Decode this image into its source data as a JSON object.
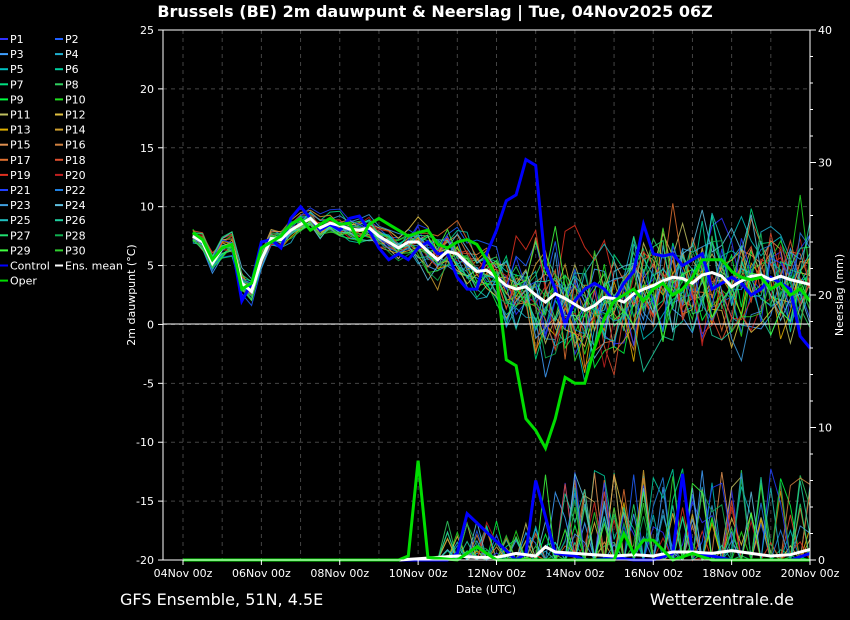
{
  "chart_data": {
    "type": "line",
    "title": "Brussels  (BE)  2m dauwpunt & Neerslag | Tue, 04Nov2025 06Z",
    "xlabel": "Date (UTC)",
    "ylabel": "2m dauwpunt (°C)",
    "y2label": "Neerslag (mm)",
    "ylim": [
      -20,
      25
    ],
    "y2lim": [
      0,
      40
    ],
    "y_ticks": [
      "-20",
      "-15",
      "-10",
      "-5",
      "0",
      "5",
      "10",
      "15",
      "20",
      "25"
    ],
    "y2_ticks": [
      "0",
      "10",
      "20",
      "30",
      "40"
    ],
    "x_ticks": [
      "04Nov 00z",
      "06Nov 00z",
      "08Nov 00z",
      "10Nov 00z",
      "12Nov 00z",
      "14Nov 00z",
      "16Nov 00z",
      "18Nov 00z",
      "20Nov 00z"
    ],
    "x_range_days": [
      0,
      16
    ],
    "grid": true,
    "legend_position": "left",
    "legend": [
      {
        "name": "P1",
        "color": "#3030ff"
      },
      {
        "name": "P2",
        "color": "#2060ff"
      },
      {
        "name": "P3",
        "color": "#40a0ff"
      },
      {
        "name": "P4",
        "color": "#20b0d0"
      },
      {
        "name": "P5",
        "color": "#00c0c0"
      },
      {
        "name": "P6",
        "color": "#00d0a0"
      },
      {
        "name": "P7",
        "color": "#00e080"
      },
      {
        "name": "P8",
        "color": "#30d060"
      },
      {
        "name": "P9",
        "color": "#00ff40"
      },
      {
        "name": "P10",
        "color": "#20e020"
      },
      {
        "name": "P11",
        "color": "#c0c060"
      },
      {
        "name": "P12",
        "color": "#e0c040"
      },
      {
        "name": "P13",
        "color": "#e0b000"
      },
      {
        "name": "P14",
        "color": "#d0a030"
      },
      {
        "name": "P15",
        "color": "#e09050"
      },
      {
        "name": "P16",
        "color": "#d08040"
      },
      {
        "name": "P17",
        "color": "#e07030"
      },
      {
        "name": "P18",
        "color": "#e05030"
      },
      {
        "name": "P19",
        "color": "#e03020"
      },
      {
        "name": "P20",
        "color": "#c02020"
      },
      {
        "name": "P21",
        "color": "#2040ff"
      },
      {
        "name": "P22",
        "color": "#2080e0"
      },
      {
        "name": "P23",
        "color": "#40a0e0"
      },
      {
        "name": "P24",
        "color": "#60c0e0"
      },
      {
        "name": "P25",
        "color": "#20c0c0"
      },
      {
        "name": "P26",
        "color": "#20d0a0"
      },
      {
        "name": "P27",
        "color": "#20e070"
      },
      {
        "name": "P28",
        "color": "#10b050"
      },
      {
        "name": "P29",
        "color": "#40ff40"
      },
      {
        "name": "P30",
        "color": "#30d030"
      },
      {
        "name": "Control",
        "color": "#0000ff"
      },
      {
        "name": "Ens. mean",
        "color": "#ffffff"
      },
      {
        "name": "Oper",
        "color": "#00dd00"
      }
    ],
    "series_highlight": [
      {
        "name": "Control",
        "color": "#0000ff",
        "x": [
          0.25,
          0.5,
          0.75,
          1,
          1.25,
          1.5,
          1.75,
          2,
          2.25,
          2.5,
          2.75,
          3,
          3.25,
          3.5,
          3.75,
          4,
          4.25,
          4.5,
          4.75,
          5,
          5.25,
          5.5,
          5.75,
          6,
          6.25,
          6.5,
          6.75,
          7,
          7.25,
          7.5,
          7.75,
          8,
          8.25,
          8.5,
          8.75,
          9,
          9.25,
          9.5,
          9.75,
          10,
          10.25,
          10.5,
          10.75,
          11,
          11.25,
          11.5,
          11.75,
          12,
          12.25,
          12.5,
          12.75,
          13,
          13.25,
          13.5,
          13.75,
          14,
          14.25,
          14.5,
          14.75,
          15,
          15.25,
          15.5,
          15.75,
          16
        ],
        "y": [
          7.5,
          7,
          5.5,
          6.5,
          6.8,
          2,
          3.5,
          7,
          7.2,
          6.5,
          9,
          10,
          9,
          8,
          8.5,
          8,
          9,
          9.2,
          8,
          6.5,
          5.5,
          6,
          5.5,
          6.5,
          7,
          6,
          6,
          4,
          3,
          3,
          6,
          8,
          10.5,
          11,
          14,
          13.5,
          5,
          3,
          0,
          2,
          3,
          3.5,
          3,
          2,
          3.5,
          4.5,
          8.5,
          6,
          5.8,
          6,
          5,
          5.5,
          6,
          3,
          3.5,
          4,
          3.5,
          2.5,
          3,
          4,
          3.5,
          3,
          -1,
          -2
        ]
      },
      {
        "name": "Ens. mean",
        "color": "#ffffff",
        "x": [
          0.25,
          0.5,
          0.75,
          1,
          1.25,
          1.5,
          1.75,
          2,
          2.25,
          2.5,
          2.75,
          3,
          3.25,
          3.5,
          3.75,
          4,
          4.25,
          4.5,
          4.75,
          5,
          5.25,
          5.5,
          5.75,
          6,
          6.25,
          6.5,
          6.75,
          7,
          7.25,
          7.5,
          7.75,
          8,
          8.25,
          8.5,
          8.75,
          9,
          9.25,
          9.5,
          9.75,
          10,
          10.25,
          10.5,
          10.75,
          11,
          11.25,
          11.5,
          11.75,
          12,
          12.25,
          12.5,
          12.75,
          13,
          13.25,
          13.5,
          13.75,
          14,
          14.25,
          14.5,
          14.75,
          15,
          15.25,
          15.5,
          15.75,
          16
        ],
        "y": [
          7.5,
          7,
          5.2,
          6.5,
          6.8,
          3.5,
          2.8,
          5.5,
          7.3,
          7.2,
          8,
          8.5,
          9,
          8.2,
          8.6,
          8.4,
          8.1,
          8,
          8.2,
          7.5,
          7,
          6.5,
          7,
          7,
          6.2,
          5.5,
          6.2,
          6,
          5.2,
          4.5,
          4.6,
          4,
          3.3,
          3,
          3.2,
          2.5,
          1.9,
          2.6,
          2.2,
          1.7,
          1.2,
          1.6,
          2.3,
          2.2,
          1.9,
          2.6,
          3,
          3.3,
          3.7,
          4,
          3.9,
          3.5,
          4.2,
          4.4,
          4.1,
          3.2,
          3.7,
          4.1,
          4.2,
          3.8,
          4.1,
          3.8,
          3.6,
          3.4
        ]
      },
      {
        "name": "Oper",
        "color": "#00dd00",
        "x": [
          0.25,
          0.5,
          0.75,
          1,
          1.25,
          1.5,
          1.75,
          2,
          2.25,
          2.5,
          2.75,
          3,
          3.25,
          3.5,
          3.75,
          4,
          4.25,
          4.5,
          4.75,
          5,
          5.25,
          5.5,
          5.75,
          6,
          6.25,
          6.5,
          6.75,
          7,
          7.25,
          7.5,
          7.75,
          8,
          8.25,
          8.5,
          8.75,
          9,
          9.25,
          9.5,
          9.75,
          10,
          10.25,
          10.5,
          10.75,
          11,
          11.25,
          11.5,
          11.75,
          12,
          12.25,
          12.5,
          12.75,
          13,
          13.25,
          13.5,
          13.75,
          14,
          14.25,
          14.5,
          14.75,
          15,
          15.25,
          15.5,
          15.75,
          16
        ],
        "y": [
          7.8,
          7.2,
          5.5,
          6.5,
          6.8,
          3,
          3.5,
          6.5,
          7,
          7.5,
          8.5,
          9,
          8,
          8.5,
          9,
          8.5,
          8.6,
          7,
          8.5,
          9,
          8.5,
          8,
          7.5,
          7.8,
          8,
          6.8,
          6.5,
          7,
          7.2,
          6.8,
          5.5,
          4,
          -3,
          -3.5,
          -8,
          -9,
          -10.5,
          -8,
          -4.5,
          -5,
          -5,
          -2,
          0.5,
          2,
          2.5,
          3,
          2,
          3,
          3.5,
          2.5,
          3,
          4,
          5.5,
          5.5,
          5.5,
          4.5,
          4,
          3.8,
          4,
          3,
          3.5,
          2.5,
          3,
          2
        ]
      }
    ],
    "precip_series": [
      {
        "name": "Control",
        "color": "#0000ff",
        "x": [
          0,
          5.5,
          6.75,
          7,
          7.25,
          8.5,
          8.75,
          9,
          9.5,
          10,
          10.25,
          10.5,
          11,
          11.5,
          12,
          12.5,
          12.75,
          13,
          13.5,
          14,
          14.5,
          15,
          15.5,
          16
        ],
        "y": [
          0,
          0,
          0,
          0.5,
          3.5,
          0,
          0.5,
          6,
          0.5,
          0.3,
          0,
          0,
          0.2,
          0,
          0,
          0.5,
          6.5,
          0.5,
          0.3,
          0,
          0,
          0,
          0,
          0.5
        ]
      },
      {
        "name": "Ens. mean",
        "color": "#ffffff",
        "x": [
          0,
          5.5,
          6,
          7,
          7.5,
          8,
          8.5,
          9,
          9.25,
          9.5,
          10,
          10.5,
          11,
          11.5,
          12,
          12.5,
          13,
          13.5,
          14,
          14.5,
          15,
          15.5,
          16
        ],
        "y": [
          0,
          0,
          0.1,
          0.3,
          0.2,
          0.2,
          0.5,
          0.3,
          1,
          0.6,
          0.5,
          0.4,
          0.3,
          0.4,
          0.3,
          0.6,
          0.6,
          0.5,
          0.7,
          0.5,
          0.3,
          0.4,
          0.8
        ]
      },
      {
        "name": "Oper",
        "color": "#00dd00",
        "x": [
          0,
          5.5,
          5.75,
          6,
          6.25,
          7,
          7.5,
          8,
          8.5,
          9,
          10,
          10.5,
          11,
          11.25,
          11.5,
          11.75,
          12,
          12.5,
          13,
          13.5,
          14,
          15,
          16
        ],
        "y": [
          0,
          0,
          0.3,
          7.5,
          0.2,
          0,
          1,
          0,
          0,
          0,
          0,
          0,
          0,
          2,
          0.5,
          1.5,
          1.5,
          0,
          0.5,
          0,
          0,
          0,
          0
        ]
      }
    ]
  },
  "footer": {
    "left": "GFS Ensemble, 51N, 4.5E",
    "right": "Wetterzentrale.de"
  }
}
